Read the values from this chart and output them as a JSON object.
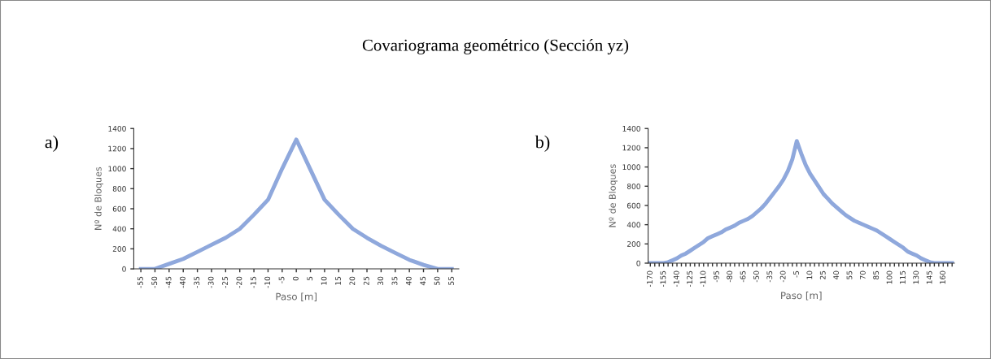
{
  "chart_data": [
    {
      "type": "line",
      "title": "Covariograma geométrico (Sección yz)",
      "annotations": [
        "a)"
      ],
      "xlabel": "Paso [m]",
      "ylabel": "Nº de Bloques",
      "ylim": [
        0,
        1400
      ],
      "yticks": [
        0,
        200,
        400,
        600,
        800,
        1000,
        1200,
        1400
      ],
      "marker": "none",
      "line_style": "solid",
      "categories": [
        "-55",
        "-50",
        "-45",
        "-40",
        "-35",
        "-30",
        "-25",
        "-20",
        "-15",
        "-10",
        "-5",
        "0",
        "5",
        "10",
        "15",
        "20",
        "25",
        "30",
        "35",
        "40",
        "45",
        "50",
        "55"
      ],
      "series": [
        {
          "color": "#8fa8dc",
          "values": [
            0,
            0,
            50,
            100,
            170,
            240,
            310,
            400,
            540,
            690,
            1000,
            1290,
            990,
            690,
            540,
            400,
            310,
            230,
            160,
            90,
            40,
            0,
            0
          ]
        }
      ]
    },
    {
      "type": "line",
      "annotations": [
        "b)"
      ],
      "xlabel": "Paso [m]",
      "ylabel": "Nº de Bloques",
      "ylim": [
        0,
        1400
      ],
      "yticks": [
        0,
        200,
        400,
        600,
        800,
        1000,
        1200,
        1400
      ],
      "marker": "none",
      "line_style": "solid",
      "categories": [
        "-170",
        null,
        null,
        "-155",
        null,
        null,
        "-140",
        null,
        null,
        "-125",
        null,
        null,
        "-110",
        null,
        null,
        "-95",
        null,
        null,
        "-80",
        null,
        null,
        "-65",
        null,
        null,
        "-50",
        null,
        null,
        "-35",
        null,
        null,
        "-20",
        null,
        null,
        "-5",
        null,
        null,
        "10",
        null,
        null,
        "25",
        null,
        null,
        "40",
        null,
        null,
        "55",
        null,
        null,
        "70",
        null,
        null,
        "85",
        null,
        null,
        "100",
        null,
        null,
        "115",
        null,
        null,
        "130",
        null,
        null,
        "145",
        null,
        null,
        "160",
        null,
        null
      ],
      "series": [
        {
          "color": "#8fa8dc",
          "values": [
            0,
            0,
            0,
            0,
            10,
            30,
            50,
            80,
            100,
            130,
            160,
            190,
            220,
            260,
            280,
            300,
            320,
            350,
            370,
            390,
            420,
            440,
            460,
            490,
            530,
            570,
            620,
            680,
            740,
            800,
            870,
            960,
            1080,
            1270,
            1140,
            1020,
            930,
            860,
            790,
            720,
            670,
            620,
            580,
            540,
            500,
            470,
            440,
            420,
            400,
            380,
            360,
            340,
            310,
            280,
            250,
            220,
            190,
            160,
            120,
            100,
            80,
            50,
            30,
            10,
            0,
            0,
            0,
            0,
            0
          ]
        }
      ]
    }
  ]
}
